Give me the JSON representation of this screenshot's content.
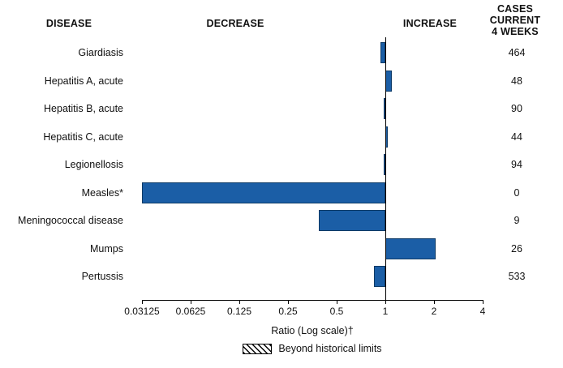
{
  "header": {
    "disease": "DISEASE",
    "decrease": "DECREASE",
    "increase": "INCREASE",
    "cases_line1": "CASES CURRENT",
    "cases_line2": "4 WEEKS"
  },
  "chart_data": {
    "type": "bar",
    "orientation": "horizontal",
    "scale": "log2",
    "baseline": 1,
    "categories": [
      "Giardiasis",
      "Hepatitis A, acute",
      "Hepatitis B, acute",
      "Hepatitis C, acute",
      "Legionellosis",
      "Measles*",
      "Meningococcal disease",
      "Mumps",
      "Pertussis"
    ],
    "ratios": [
      0.93,
      1.1,
      0.98,
      1.03,
      0.98,
      0.03125,
      0.39,
      2.05,
      0.85
    ],
    "cases_current_4_weeks": [
      464,
      48,
      90,
      44,
      94,
      0,
      9,
      26,
      533
    ],
    "beyond_historical_limits": [
      false,
      false,
      false,
      false,
      false,
      false,
      false,
      false,
      false
    ],
    "x_ticks": [
      0.03125,
      0.0625,
      0.125,
      0.25,
      0.5,
      1,
      2,
      4
    ],
    "x_tick_labels": [
      "0.03125",
      "0.0625",
      "0.125",
      "0.25",
      "0.5",
      "1",
      "2",
      "4"
    ],
    "xlim": [
      0.03125,
      4
    ],
    "xlabel": "Ratio (Log scale)†",
    "legend_label": "Beyond historical limits",
    "legend_style": "hatched",
    "bar_color": "#1b5ea6",
    "grid": false,
    "legend_position": "bottom-center"
  }
}
